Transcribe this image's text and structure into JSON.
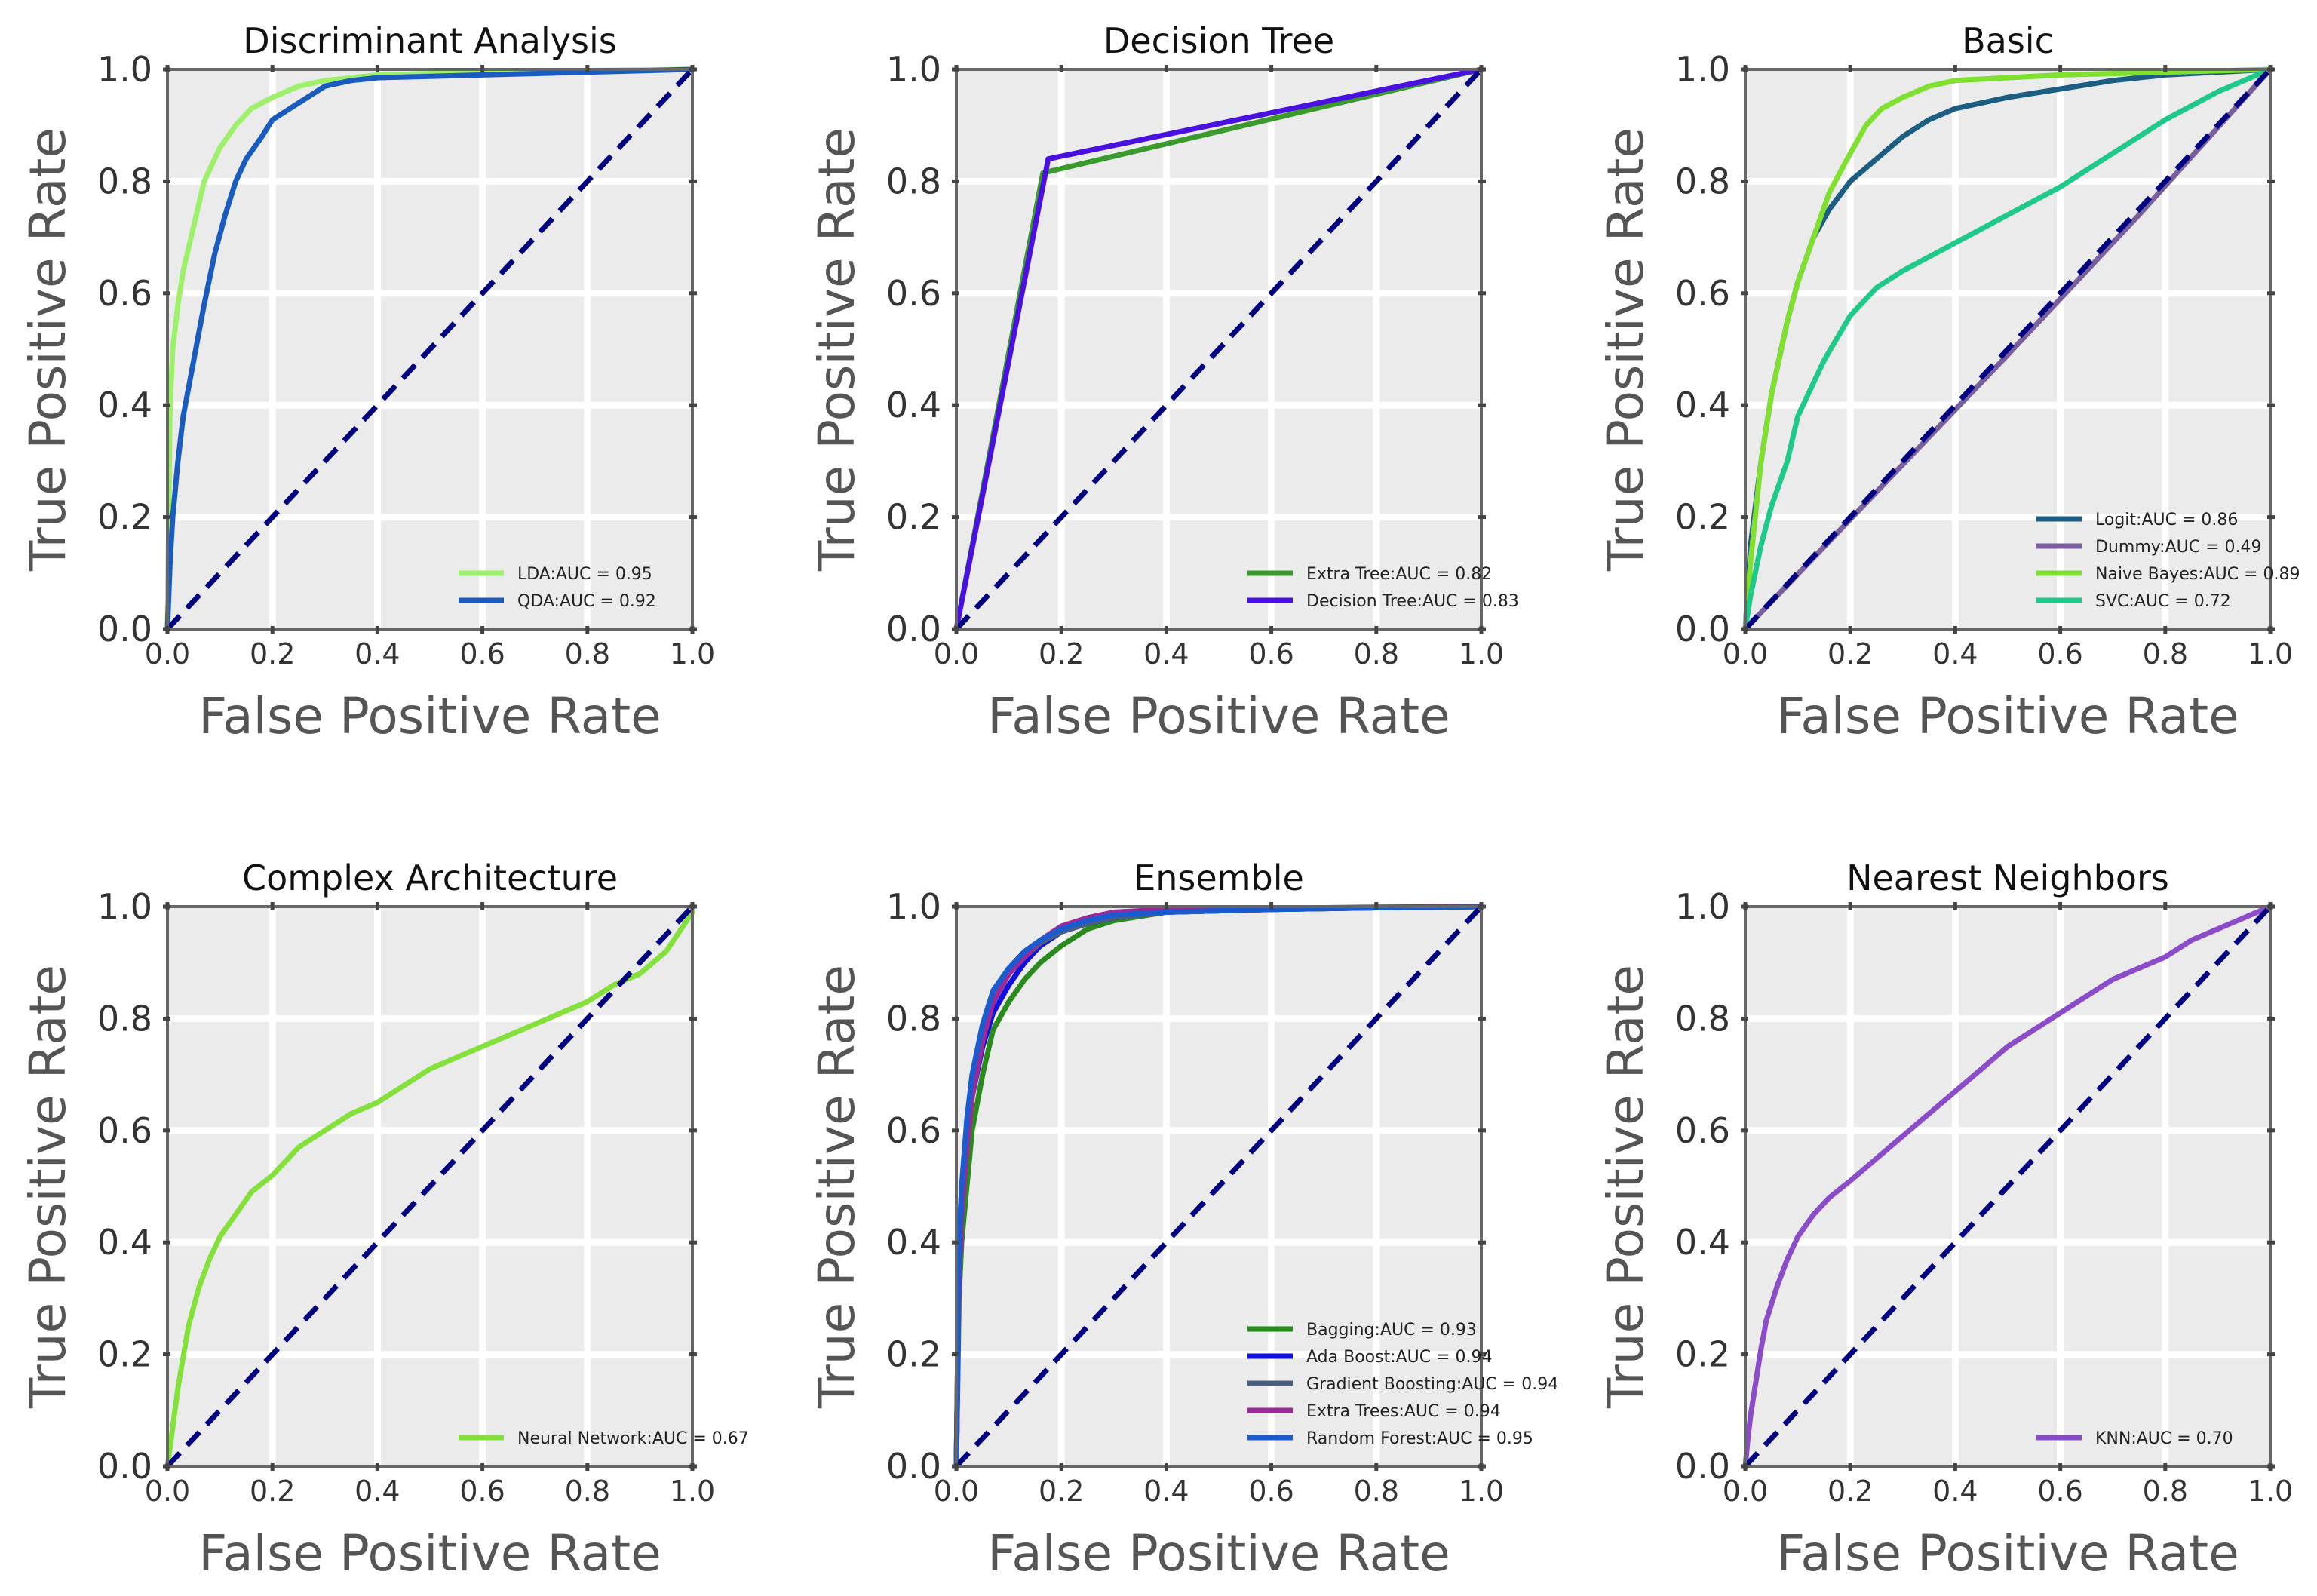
{
  "chart_data": [
    {
      "type": "line",
      "title": "Discriminant Analysis",
      "xlabel": "False Positive Rate",
      "ylabel": "True Positive Rate",
      "xlim": [
        0,
        1
      ],
      "ylim": [
        0,
        1
      ],
      "xticks": [
        "0.0",
        "0.2",
        "0.4",
        "0.6",
        "0.8",
        "1.0"
      ],
      "yticks": [
        "0.0",
        "0.2",
        "0.4",
        "0.6",
        "0.8",
        "1.0"
      ],
      "grid": true,
      "legend_position": "lower-right",
      "series": [
        {
          "name": "LDA:AUC = 0.95",
          "color": "#9ef06a",
          "x": [
            0,
            0.005,
            0.01,
            0.02,
            0.03,
            0.05,
            0.07,
            0.1,
            0.13,
            0.16,
            0.2,
            0.25,
            0.3,
            0.4,
            0.6,
            0.8,
            1.0
          ],
          "y": [
            0,
            0.4,
            0.5,
            0.58,
            0.64,
            0.72,
            0.8,
            0.86,
            0.9,
            0.93,
            0.95,
            0.97,
            0.98,
            0.99,
            0.995,
            0.998,
            1.0
          ]
        },
        {
          "name": "QDA:AUC = 0.92",
          "color": "#1a5bbf",
          "x": [
            0,
            0.005,
            0.01,
            0.02,
            0.03,
            0.05,
            0.07,
            0.09,
            0.11,
            0.13,
            0.15,
            0.18,
            0.2,
            0.25,
            0.3,
            0.35,
            0.4,
            0.6,
            0.8,
            1.0
          ],
          "y": [
            0,
            0.12,
            0.2,
            0.3,
            0.38,
            0.48,
            0.58,
            0.67,
            0.74,
            0.8,
            0.84,
            0.88,
            0.91,
            0.94,
            0.97,
            0.98,
            0.985,
            0.99,
            0.995,
            1.0
          ]
        },
        {
          "name": "",
          "color": "#000080",
          "dashed": true,
          "x": [
            0,
            1
          ],
          "y": [
            0,
            1
          ]
        }
      ]
    },
    {
      "type": "line",
      "title": "Decision Tree",
      "xlabel": "False Positive Rate",
      "ylabel": "True Positive Rate",
      "xlim": [
        0,
        1
      ],
      "ylim": [
        0,
        1
      ],
      "xticks": [
        "0.0",
        "0.2",
        "0.4",
        "0.6",
        "0.8",
        "1.0"
      ],
      "yticks": [
        "0.0",
        "0.2",
        "0.4",
        "0.6",
        "0.8",
        "1.0"
      ],
      "grid": true,
      "legend_position": "lower-right",
      "series": [
        {
          "name": "Extra Tree:AUC = 0.82",
          "color": "#3a9a2e",
          "x": [
            0,
            0.165,
            1.0
          ],
          "y": [
            0,
            0.815,
            1.0
          ]
        },
        {
          "name": "Decision Tree:AUC = 0.83",
          "color": "#4a10e0",
          "x": [
            0,
            0.175,
            1.0
          ],
          "y": [
            0,
            0.84,
            1.0
          ]
        },
        {
          "name": "",
          "color": "#000080",
          "dashed": true,
          "x": [
            0,
            1
          ],
          "y": [
            0,
            1
          ]
        }
      ]
    },
    {
      "type": "line",
      "title": "Basic",
      "xlabel": "False Positive Rate",
      "ylabel": "True Positive Rate",
      "xlim": [
        0,
        1
      ],
      "ylim": [
        0,
        1
      ],
      "xticks": [
        "0.0",
        "0.2",
        "0.4",
        "0.6",
        "0.8",
        "1.0"
      ],
      "yticks": [
        "0.0",
        "0.2",
        "0.4",
        "0.6",
        "0.8",
        "1.0"
      ],
      "grid": true,
      "legend_position": "lower-right",
      "series": [
        {
          "name": "Logit:AUC = 0.86",
          "color": "#1b5e82",
          "x": [
            0,
            0.01,
            0.03,
            0.05,
            0.08,
            0.1,
            0.13,
            0.16,
            0.2,
            0.25,
            0.3,
            0.35,
            0.4,
            0.5,
            0.6,
            0.7,
            0.8,
            0.9,
            1.0
          ],
          "y": [
            0,
            0.15,
            0.3,
            0.42,
            0.55,
            0.62,
            0.7,
            0.75,
            0.8,
            0.84,
            0.88,
            0.91,
            0.93,
            0.95,
            0.965,
            0.98,
            0.99,
            0.995,
            1.0
          ]
        },
        {
          "name": "Dummy:AUC = 0.49",
          "color": "#7a5f9e",
          "x": [
            0,
            0.25,
            0.5,
            0.75,
            1.0
          ],
          "y": [
            0,
            0.245,
            0.49,
            0.74,
            1.0
          ]
        },
        {
          "name": "Naive Bayes:AUC = 0.89",
          "color": "#7fe030",
          "x": [
            0,
            0.01,
            0.03,
            0.05,
            0.08,
            0.1,
            0.13,
            0.16,
            0.2,
            0.23,
            0.26,
            0.3,
            0.35,
            0.4,
            0.5,
            0.6,
            0.8,
            1.0
          ],
          "y": [
            0,
            0.12,
            0.3,
            0.42,
            0.55,
            0.62,
            0.7,
            0.78,
            0.85,
            0.9,
            0.93,
            0.95,
            0.97,
            0.98,
            0.985,
            0.99,
            0.995,
            1.0
          ]
        },
        {
          "name": "SVC:AUC = 0.72",
          "color": "#1fc98a",
          "x": [
            0,
            0.01,
            0.03,
            0.05,
            0.08,
            0.1,
            0.15,
            0.2,
            0.25,
            0.3,
            0.4,
            0.5,
            0.6,
            0.7,
            0.8,
            0.9,
            1.0
          ],
          "y": [
            0,
            0.06,
            0.15,
            0.22,
            0.3,
            0.38,
            0.48,
            0.56,
            0.61,
            0.64,
            0.69,
            0.74,
            0.79,
            0.85,
            0.91,
            0.96,
            1.0
          ]
        },
        {
          "name": "",
          "color": "#000080",
          "dashed": true,
          "x": [
            0,
            1
          ],
          "y": [
            0,
            1
          ]
        }
      ]
    },
    {
      "type": "line",
      "title": "Complex Architecture",
      "xlabel": "False Positive Rate",
      "ylabel": "True Positive Rate",
      "xlim": [
        0,
        1
      ],
      "ylim": [
        0,
        1
      ],
      "xticks": [
        "0.0",
        "0.2",
        "0.4",
        "0.6",
        "0.8",
        "1.0"
      ],
      "yticks": [
        "0.0",
        "0.2",
        "0.4",
        "0.6",
        "0.8",
        "1.0"
      ],
      "grid": true,
      "legend_position": "lower-right",
      "series": [
        {
          "name": "Neural Network:AUC = 0.67",
          "color": "#84e03a",
          "x": [
            0,
            0.01,
            0.02,
            0.04,
            0.06,
            0.08,
            0.1,
            0.13,
            0.16,
            0.2,
            0.25,
            0.3,
            0.35,
            0.4,
            0.45,
            0.5,
            0.55,
            0.6,
            0.65,
            0.7,
            0.75,
            0.8,
            0.85,
            0.9,
            0.95,
            1.0
          ],
          "y": [
            0,
            0.07,
            0.14,
            0.25,
            0.32,
            0.37,
            0.41,
            0.45,
            0.49,
            0.52,
            0.57,
            0.6,
            0.63,
            0.65,
            0.68,
            0.71,
            0.73,
            0.75,
            0.77,
            0.79,
            0.81,
            0.83,
            0.86,
            0.88,
            0.92,
            0.99
          ]
        },
        {
          "name": "",
          "color": "#000080",
          "dashed": true,
          "x": [
            0,
            1
          ],
          "y": [
            0,
            1
          ]
        }
      ]
    },
    {
      "type": "line",
      "title": "Ensemble",
      "xlabel": "False Positive Rate",
      "ylabel": "True Positive Rate",
      "xlim": [
        0,
        1
      ],
      "ylim": [
        0,
        1
      ],
      "xticks": [
        "0.0",
        "0.2",
        "0.4",
        "0.6",
        "0.8",
        "1.0"
      ],
      "yticks": [
        "0.0",
        "0.2",
        "0.4",
        "0.6",
        "0.8",
        "1.0"
      ],
      "grid": true,
      "legend_position": "lower-right",
      "series": [
        {
          "name": "Bagging:AUC = 0.93",
          "color": "#2a8a1e",
          "x": [
            0,
            0.005,
            0.01,
            0.02,
            0.03,
            0.05,
            0.07,
            0.1,
            0.13,
            0.16,
            0.2,
            0.25,
            0.3,
            0.4,
            0.6,
            0.8,
            1.0
          ],
          "y": [
            0,
            0.3,
            0.4,
            0.5,
            0.6,
            0.7,
            0.78,
            0.83,
            0.87,
            0.9,
            0.93,
            0.96,
            0.975,
            0.99,
            0.995,
            0.998,
            1.0
          ]
        },
        {
          "name": "Ada Boost:AUC = 0.94",
          "color": "#1010e0",
          "x": [
            0,
            0.005,
            0.01,
            0.02,
            0.03,
            0.05,
            0.07,
            0.1,
            0.13,
            0.16,
            0.2,
            0.25,
            0.3,
            0.4,
            0.6,
            0.8,
            1.0
          ],
          "y": [
            0,
            0.35,
            0.46,
            0.58,
            0.66,
            0.75,
            0.81,
            0.86,
            0.9,
            0.93,
            0.955,
            0.97,
            0.98,
            0.99,
            0.995,
            0.998,
            1.0
          ]
        },
        {
          "name": "Gradient Boosting:AUC = 0.94",
          "color": "#4a5e80",
          "x": [
            0,
            0.005,
            0.01,
            0.02,
            0.03,
            0.05,
            0.07,
            0.1,
            0.13,
            0.16,
            0.2,
            0.25,
            0.3,
            0.4,
            0.6,
            0.8,
            1.0
          ],
          "y": [
            0,
            0.38,
            0.48,
            0.6,
            0.68,
            0.77,
            0.83,
            0.88,
            0.91,
            0.935,
            0.955,
            0.97,
            0.98,
            0.99,
            0.995,
            0.998,
            1.0
          ]
        },
        {
          "name": "Extra Trees:AUC = 0.94",
          "color": "#9a2a9a",
          "x": [
            0,
            0.005,
            0.01,
            0.02,
            0.03,
            0.05,
            0.07,
            0.1,
            0.13,
            0.16,
            0.2,
            0.25,
            0.3,
            0.4,
            0.6,
            0.8,
            1.0
          ],
          "y": [
            0,
            0.34,
            0.45,
            0.57,
            0.66,
            0.76,
            0.83,
            0.88,
            0.91,
            0.94,
            0.965,
            0.98,
            0.99,
            0.995,
            0.997,
            0.999,
            1.0
          ]
        },
        {
          "name": "Random Forest:AUC = 0.95",
          "color": "#1a5bd0",
          "x": [
            0,
            0.005,
            0.01,
            0.02,
            0.03,
            0.05,
            0.07,
            0.1,
            0.13,
            0.16,
            0.2,
            0.25,
            0.3,
            0.4,
            0.6,
            0.8,
            1.0
          ],
          "y": [
            0,
            0.4,
            0.5,
            0.62,
            0.7,
            0.79,
            0.85,
            0.89,
            0.92,
            0.94,
            0.96,
            0.975,
            0.985,
            0.99,
            0.995,
            0.998,
            1.0
          ]
        },
        {
          "name": "",
          "color": "#000080",
          "dashed": true,
          "x": [
            0,
            1
          ],
          "y": [
            0,
            1
          ]
        }
      ]
    },
    {
      "type": "line",
      "title": "Nearest Neighbors",
      "xlabel": "False Positive Rate",
      "ylabel": "True Positive Rate",
      "xlim": [
        0,
        1
      ],
      "ylim": [
        0,
        1
      ],
      "xticks": [
        "0.0",
        "0.2",
        "0.4",
        "0.6",
        "0.8",
        "1.0"
      ],
      "yticks": [
        "0.0",
        "0.2",
        "0.4",
        "0.6",
        "0.8",
        "1.0"
      ],
      "grid": true,
      "legend_position": "lower-right",
      "series": [
        {
          "name": "KNN:AUC = 0.70",
          "color": "#8a4cc9",
          "x": [
            0,
            0.005,
            0.01,
            0.02,
            0.03,
            0.04,
            0.06,
            0.08,
            0.1,
            0.13,
            0.16,
            0.2,
            0.25,
            0.3,
            0.35,
            0.4,
            0.45,
            0.5,
            0.55,
            0.6,
            0.65,
            0.7,
            0.75,
            0.8,
            0.85,
            0.9,
            0.95,
            1.0
          ],
          "y": [
            0,
            0.05,
            0.09,
            0.15,
            0.21,
            0.26,
            0.32,
            0.37,
            0.41,
            0.45,
            0.48,
            0.51,
            0.55,
            0.59,
            0.63,
            0.67,
            0.71,
            0.75,
            0.78,
            0.81,
            0.84,
            0.87,
            0.89,
            0.91,
            0.94,
            0.96,
            0.98,
            1.0
          ]
        },
        {
          "name": "",
          "color": "#000080",
          "dashed": true,
          "x": [
            0,
            1
          ],
          "y": [
            0,
            1
          ]
        }
      ]
    }
  ]
}
